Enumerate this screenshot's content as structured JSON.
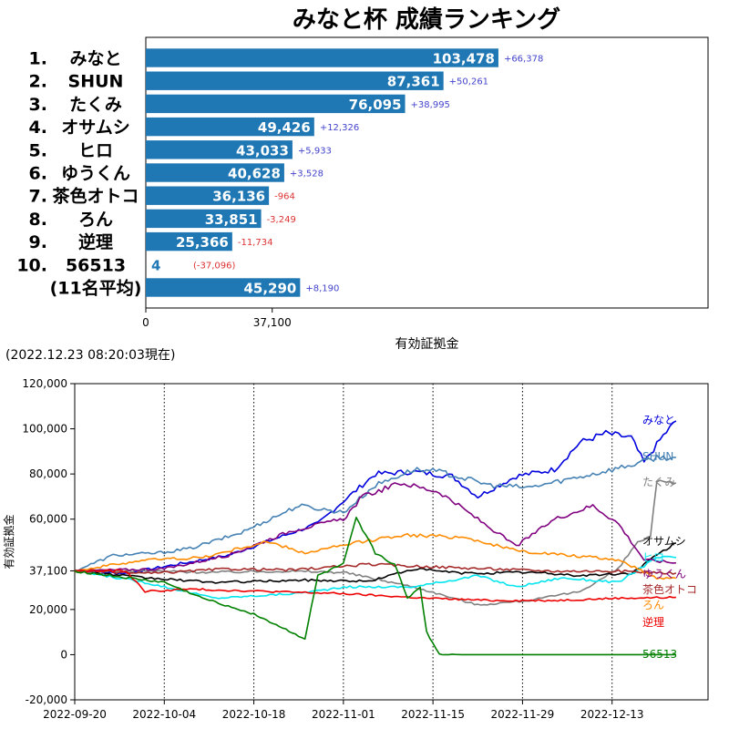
{
  "timestamp": "(2022.12.23 08:20:03現在)",
  "chart_data": [
    {
      "type": "bar",
      "orientation": "horizontal",
      "title": "みなと杯 成績ランキング",
      "xlabel": "有効証拠金",
      "xlim": [
        0,
        165000
      ],
      "xticks": [
        0,
        37100
      ],
      "xtick_labels": [
        "0",
        "37,100"
      ],
      "categories": [
        {
          "rank": "1.",
          "name": "みなと"
        },
        {
          "rank": "2.",
          "name": "SHUN"
        },
        {
          "rank": "3.",
          "name": "たくみ"
        },
        {
          "rank": "4.",
          "name": "オサムシ"
        },
        {
          "rank": "5.",
          "name": "ヒロ"
        },
        {
          "rank": "6.",
          "name": "ゆうくん"
        },
        {
          "rank": "7.",
          "name": "茶色オトコ"
        },
        {
          "rank": "8.",
          "name": "ろん"
        },
        {
          "rank": "9.",
          "name": "逆理"
        },
        {
          "rank": "10.",
          "name": "56513"
        },
        {
          "rank": "",
          "name": "(11名平均)"
        }
      ],
      "values": [
        103478,
        87361,
        76095,
        49426,
        43033,
        40628,
        36136,
        33851,
        25366,
        4,
        45290
      ],
      "value_labels": [
        "103,478",
        "87,361",
        "76,095",
        "49,426",
        "43,033",
        "40,628",
        "36,136",
        "33,851",
        "25,366",
        "4",
        "45,290"
      ],
      "deltas": [
        "+66,378",
        "+50,261",
        "+38,995",
        "+12,326",
        "+5,933",
        "+3,528",
        "-964",
        "-3,249",
        "-11,734",
        "(-37,096)",
        "+8,190"
      ],
      "bar_color": "#1f77b4",
      "positive_delta_color": "#4444cc",
      "negative_delta_color": "#dd3333"
    },
    {
      "type": "line",
      "ylabel": "有効証拠金",
      "ylim": [
        -20000,
        120000
      ],
      "yticks": [
        -20000,
        0,
        20000,
        37100,
        60000,
        80000,
        100000,
        120000
      ],
      "ytick_labels": [
        "-20,000",
        "0",
        "20,000",
        "37,100",
        "60,000",
        "80,000",
        "100,000",
        "120,000"
      ],
      "xlim": [
        "2022-09-20",
        "2022-12-28"
      ],
      "xticks": [
        "2022-09-20",
        "2022-10-04",
        "2022-10-18",
        "2022-11-01",
        "2022-11-15",
        "2022-11-29",
        "2022-12-13"
      ],
      "vlines": [
        "2022-10-04",
        "2022-10-18",
        "2022-11-01",
        "2022-11-15",
        "2022-11-29",
        "2022-12-13"
      ],
      "series": [
        {
          "name": "みなと",
          "color": "#0000dd",
          "points": [
            [
              "2022-09-20",
              37100
            ],
            [
              "2022-09-28",
              36000
            ],
            [
              "2022-10-06",
              40000
            ],
            [
              "2022-10-14",
              44000
            ],
            [
              "2022-10-20",
              50000
            ],
            [
              "2022-10-28",
              58000
            ],
            [
              "2022-11-01",
              68000
            ],
            [
              "2022-11-06",
              80000
            ],
            [
              "2022-11-12",
              81000
            ],
            [
              "2022-11-18",
              79000
            ],
            [
              "2022-11-22",
              70000
            ],
            [
              "2022-11-28",
              79000
            ],
            [
              "2022-12-04",
              82000
            ],
            [
              "2022-12-08",
              94000
            ],
            [
              "2022-12-12",
              98000
            ],
            [
              "2022-12-16",
              96000
            ],
            [
              "2022-12-18",
              85000
            ],
            [
              "2022-12-21",
              97000
            ],
            [
              "2022-12-23",
              103478
            ]
          ]
        },
        {
          "name": "SHUN",
          "color": "#4682b4",
          "points": [
            [
              "2022-09-20",
              37100
            ],
            [
              "2022-09-26",
              44000
            ],
            [
              "2022-10-03",
              45000
            ],
            [
              "2022-10-08",
              47000
            ],
            [
              "2022-10-16",
              54000
            ],
            [
              "2022-10-25",
              66000
            ],
            [
              "2022-11-01",
              63000
            ],
            [
              "2022-11-06",
              75000
            ],
            [
              "2022-11-12",
              82000
            ],
            [
              "2022-11-16",
              81000
            ],
            [
              "2022-11-24",
              75000
            ],
            [
              "2022-11-30",
              74000
            ],
            [
              "2022-12-05",
              77000
            ],
            [
              "2022-12-10",
              80000
            ],
            [
              "2022-12-16",
              84000
            ],
            [
              "2022-12-20",
              87361
            ],
            [
              "2022-12-23",
              87361
            ]
          ]
        },
        {
          "name": "たくみ",
          "color": "#808080",
          "points": [
            [
              "2022-09-20",
              37100
            ],
            [
              "2022-10-01",
              37000
            ],
            [
              "2022-10-12",
              36500
            ],
            [
              "2022-10-22",
              37000
            ],
            [
              "2022-11-01",
              36500
            ],
            [
              "2022-11-12",
              30000
            ],
            [
              "2022-11-22",
              22000
            ],
            [
              "2022-11-30",
              24000
            ],
            [
              "2022-12-08",
              28000
            ],
            [
              "2022-12-14",
              38000
            ],
            [
              "2022-12-17",
              50000
            ],
            [
              "2022-12-19",
              52000
            ],
            [
              "2022-12-20",
              76095
            ],
            [
              "2022-12-23",
              76095
            ]
          ]
        },
        {
          "name": "オサムシ",
          "color": "#000000",
          "points": [
            [
              "2022-09-20",
              37100
            ],
            [
              "2022-10-01",
              34000
            ],
            [
              "2022-10-12",
              32000
            ],
            [
              "2022-10-26",
              33000
            ],
            [
              "2022-11-05",
              32500
            ],
            [
              "2022-11-12",
              38000
            ],
            [
              "2022-11-20",
              36000
            ],
            [
              "2022-11-30",
              36500
            ],
            [
              "2022-12-08",
              35000
            ],
            [
              "2022-12-16",
              36000
            ],
            [
              "2022-12-20",
              44000
            ],
            [
              "2022-12-23",
              49426
            ]
          ]
        },
        {
          "name": "ヒロ",
          "color": "#00e5ee",
          "points": [
            [
              "2022-09-20",
              37100
            ],
            [
              "2022-10-01",
              32000
            ],
            [
              "2022-10-12",
              25000
            ],
            [
              "2022-10-24",
              27000
            ],
            [
              "2022-11-02",
              30000
            ],
            [
              "2022-11-12",
              30000
            ],
            [
              "2022-11-22",
              35000
            ],
            [
              "2022-11-28",
              30000
            ],
            [
              "2022-12-05",
              34000
            ],
            [
              "2022-12-14",
              32000
            ],
            [
              "2022-12-20",
              43000
            ],
            [
              "2022-12-23",
              43033
            ]
          ]
        },
        {
          "name": "ゆうくん",
          "color": "#800080",
          "points": [
            [
              "2022-09-20",
              37100
            ],
            [
              "2022-10-04",
              38000
            ],
            [
              "2022-10-14",
              44000
            ],
            [
              "2022-10-24",
              55000
            ],
            [
              "2022-11-01",
              60000
            ],
            [
              "2022-11-04",
              70000
            ],
            [
              "2022-11-10",
              76000
            ],
            [
              "2022-11-16",
              72000
            ],
            [
              "2022-11-22",
              60000
            ],
            [
              "2022-11-28",
              48000
            ],
            [
              "2022-12-04",
              60000
            ],
            [
              "2022-12-10",
              66000
            ],
            [
              "2022-12-14",
              58000
            ],
            [
              "2022-12-18",
              42000
            ],
            [
              "2022-12-23",
              40628
            ]
          ]
        },
        {
          "name": "茶色オトコ",
          "color": "#a52a2a",
          "points": [
            [
              "2022-09-20",
              37100
            ],
            [
              "2022-10-02",
              36000
            ],
            [
              "2022-10-14",
              38000
            ],
            [
              "2022-10-24",
              37500
            ],
            [
              "2022-11-05",
              40000
            ],
            [
              "2022-11-14",
              39000
            ],
            [
              "2022-11-24",
              38000
            ],
            [
              "2022-12-04",
              37000
            ],
            [
              "2022-12-14",
              37000
            ],
            [
              "2022-12-23",
              36136
            ]
          ]
        },
        {
          "name": "ろん",
          "color": "#ff8c00",
          "points": [
            [
              "2022-09-20",
              37100
            ],
            [
              "2022-10-01",
              42000
            ],
            [
              "2022-10-10",
              43000
            ],
            [
              "2022-10-20",
              50000
            ],
            [
              "2022-10-26",
              45000
            ],
            [
              "2022-11-04",
              50000
            ],
            [
              "2022-11-10",
              53000
            ],
            [
              "2022-11-20",
              52000
            ],
            [
              "2022-11-28",
              46000
            ],
            [
              "2022-12-06",
              44000
            ],
            [
              "2022-12-14",
              42000
            ],
            [
              "2022-12-20",
              34000
            ],
            [
              "2022-12-23",
              33851
            ]
          ]
        },
        {
          "name": "逆理",
          "color": "#ee0000",
          "points": [
            [
              "2022-09-20",
              37100
            ],
            [
              "2022-09-28",
              37000
            ],
            [
              "2022-10-01",
              28000
            ],
            [
              "2022-10-08",
              29000
            ],
            [
              "2022-10-20",
              28000
            ],
            [
              "2022-11-01",
              27000
            ],
            [
              "2022-11-14",
              25000
            ],
            [
              "2022-11-24",
              24000
            ],
            [
              "2022-12-04",
              24000
            ],
            [
              "2022-12-14",
              25000
            ],
            [
              "2022-12-23",
              25366
            ]
          ]
        },
        {
          "name": "56513",
          "color": "#008000",
          "points": [
            [
              "2022-09-20",
              37100
            ],
            [
              "2022-09-28",
              34000
            ],
            [
              "2022-10-04",
              32000
            ],
            [
              "2022-10-10",
              25000
            ],
            [
              "2022-10-18",
              18000
            ],
            [
              "2022-10-26",
              7000
            ],
            [
              "2022-10-28",
              35000
            ],
            [
              "2022-11-01",
              40000
            ],
            [
              "2022-11-03",
              60000
            ],
            [
              "2022-11-06",
              45000
            ],
            [
              "2022-11-09",
              40000
            ],
            [
              "2022-11-11",
              25000
            ],
            [
              "2022-11-13",
              30000
            ],
            [
              "2022-11-14",
              10000
            ],
            [
              "2022-11-16",
              200
            ],
            [
              "2022-11-20",
              4
            ],
            [
              "2022-12-23",
              4
            ]
          ]
        }
      ]
    }
  ]
}
